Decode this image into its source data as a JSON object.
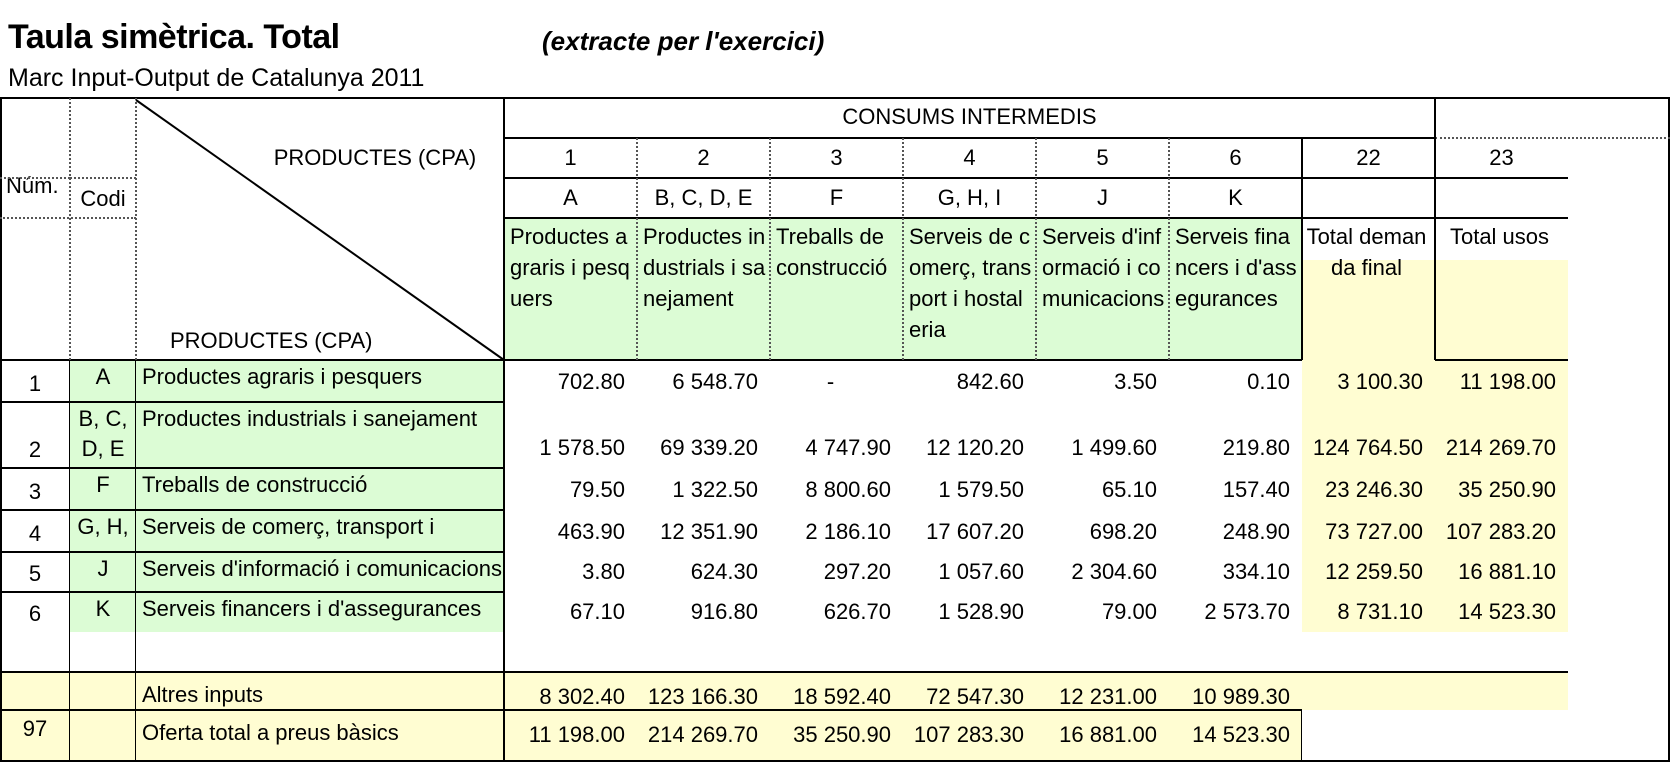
{
  "title": "Taula simètrica. Total",
  "subtitle_note": "(extracte per l'exercici)",
  "subtitle": "Marc Input-Output de Catalunya 2011",
  "header": {
    "num_label": "Núm.",
    "codi_label": "Codi",
    "row_axis_label": "PRODUCTES (CPA)",
    "col_axis_label": "PRODUCTES (CPA)",
    "group_label": "CONSUMS INTERMEDIS"
  },
  "columns": [
    {
      "num": "1",
      "code": "A",
      "name": "Productes agraris i pesquers"
    },
    {
      "num": "2",
      "code": "B, C, D, E",
      "name": "Productes industrials i sanejament"
    },
    {
      "num": "3",
      "code": "F",
      "name": "Treballs de construcció"
    },
    {
      "num": "4",
      "code": "G, H, I",
      "name": "Serveis de comerç, transport i hostaleria"
    },
    {
      "num": "5",
      "code": "J",
      "name": "Serveis d'informació i comunicacions"
    },
    {
      "num": "6",
      "code": "K",
      "name": "Serveis financers i d'assegurances"
    },
    {
      "num": "22",
      "code": "",
      "name": "Total demanda final"
    },
    {
      "num": "23",
      "code": "",
      "name": "Total usos"
    }
  ],
  "rows": [
    {
      "num": "1",
      "code": "A",
      "name": "Productes agraris i pesquers",
      "values": [
        "702.80",
        "6 548.70",
        "-",
        "842.60",
        "3.50",
        "0.10",
        "3 100.30",
        "11 198.00"
      ]
    },
    {
      "num": "2",
      "code": "B, C, D, E",
      "name": "Productes industrials i sanejament",
      "values": [
        "1 578.50",
        "69 339.20",
        "4 747.90",
        "12 120.20",
        "1 499.60",
        "219.80",
        "124 764.50",
        "214 269.70"
      ]
    },
    {
      "num": "3",
      "code": "F",
      "name": "Treballs de construcció",
      "values": [
        "79.50",
        "1 322.50",
        "8 800.60",
        "1 579.50",
        "65.10",
        "157.40",
        "23 246.30",
        "35 250.90"
      ]
    },
    {
      "num": "4",
      "code": "G, H,",
      "name": "Serveis de comerç, transport i",
      "values": [
        "463.90",
        "12 351.90",
        "2 186.10",
        "17 607.20",
        "698.20",
        "248.90",
        "73 727.00",
        "107 283.20"
      ]
    },
    {
      "num": "5",
      "code": "J",
      "name": "Serveis d'informació i comunicacions",
      "values": [
        "3.80",
        "624.30",
        "297.20",
        "1 057.60",
        "2 304.60",
        "334.10",
        "12 259.50",
        "16 881.10"
      ]
    },
    {
      "num": "6",
      "code": "K",
      "name": "Serveis financers i d'assegurances",
      "values": [
        "67.10",
        "916.80",
        "626.70",
        "1 528.90",
        "79.00",
        "2 573.70",
        "8 731.10",
        "14 523.30"
      ]
    }
  ],
  "footer_rows": [
    {
      "num": "",
      "code": "",
      "name": "Altres inputs",
      "values": [
        "8 302.40",
        "123 166.30",
        "18 592.40",
        "72 547.30",
        "12 231.00",
        "10 989.30"
      ]
    },
    {
      "num": "97",
      "code": "",
      "name": "Oferta total a preus bàsics",
      "values": [
        "11 198.00",
        "214 269.70",
        "35 250.90",
        "107 283.30",
        "16 881.00",
        "14 523.30"
      ]
    }
  ],
  "colors": {
    "green": "#dcfcd5",
    "yellow": "#fffdd2"
  }
}
